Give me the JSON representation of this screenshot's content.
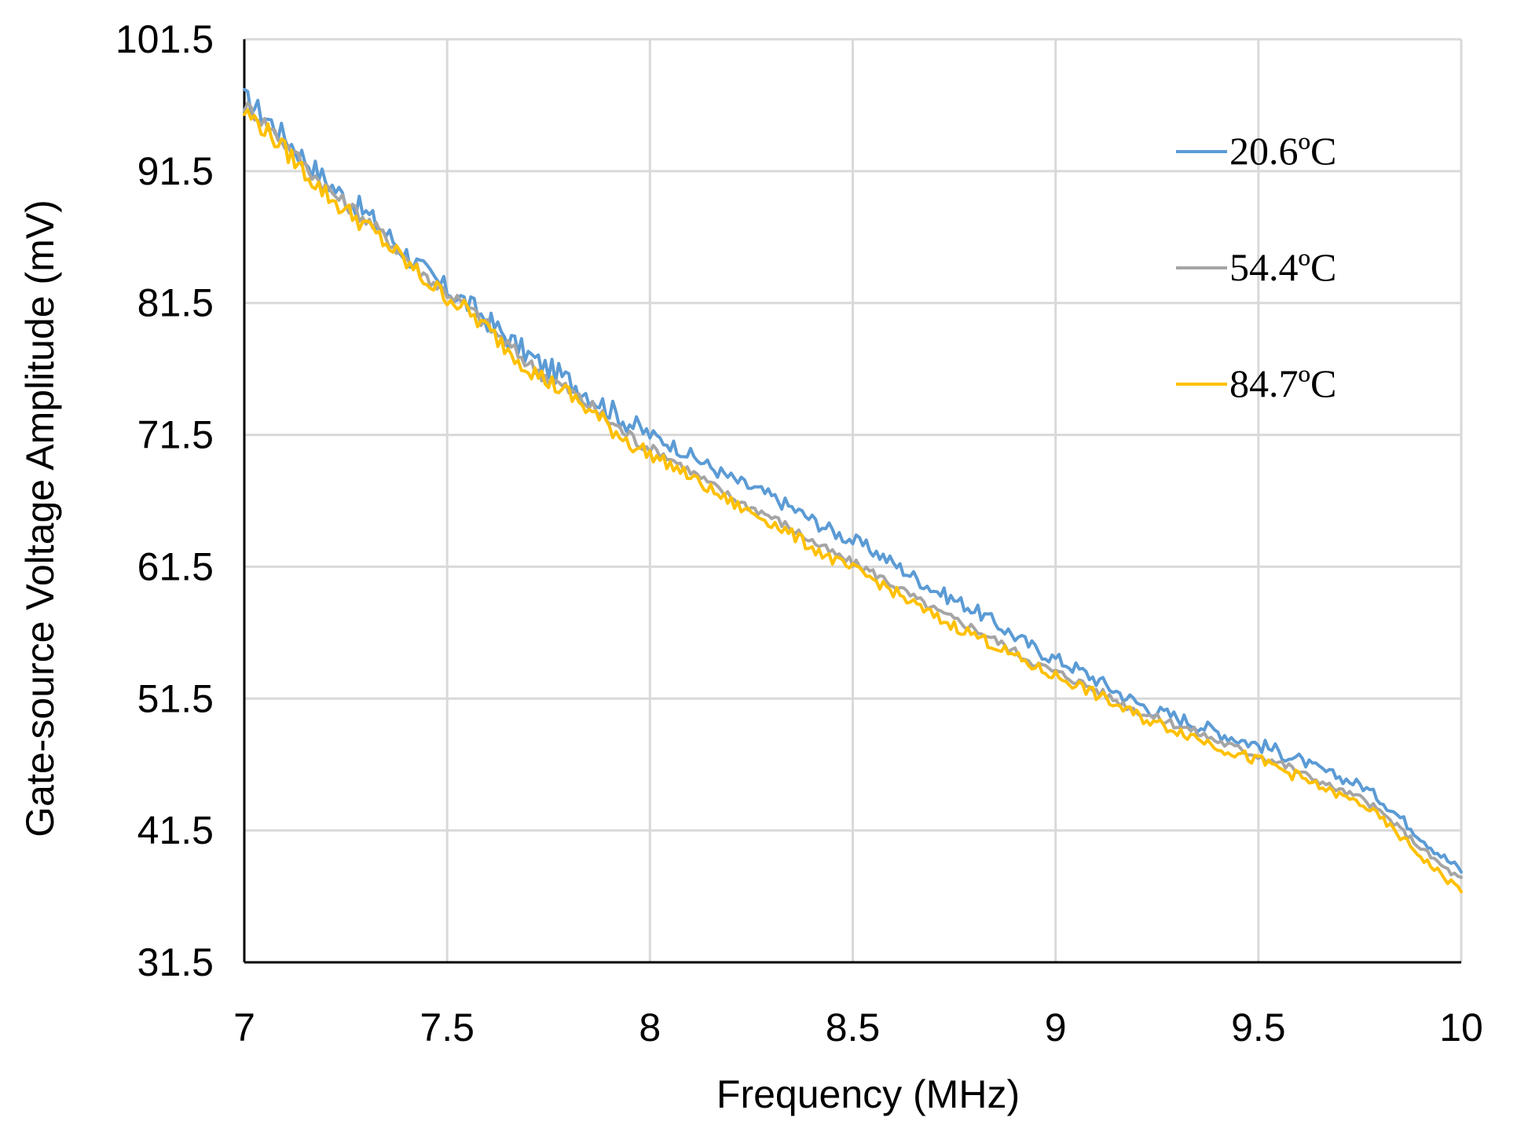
{
  "chart_data": {
    "type": "line",
    "title": "",
    "xlabel": "Frequency (MHz)",
    "ylabel": "Gate-source Voltage Amplitude (mV)",
    "xlim": [
      7,
      10
    ],
    "ylim": [
      31.5,
      101.5
    ],
    "xticks": [
      7,
      7.5,
      8,
      8.5,
      9,
      9.5,
      10
    ],
    "xtick_labels": [
      "7",
      "7.5",
      "8",
      "8.5",
      "9",
      "9.5",
      "10"
    ],
    "yticks": [
      31.5,
      41.5,
      51.5,
      61.5,
      71.5,
      81.5,
      91.5,
      101.5
    ],
    "ytick_labels": [
      "31.5",
      "41.5",
      "51.5",
      "61.5",
      "71.5",
      "81.5",
      "91.5",
      "101.5"
    ],
    "grid": true,
    "legend_position": "top-right",
    "x": [
      7.0,
      7.25,
      7.5,
      7.75,
      8.0,
      8.25,
      8.5,
      8.75,
      9.0,
      9.25,
      9.5,
      9.75,
      10.0
    ],
    "series": [
      {
        "name": "20.6ºC",
        "color": "#5b9bd5",
        "values": [
          97.0,
          89.5,
          82.5,
          76.5,
          71.5,
          67.5,
          63.5,
          59.0,
          54.5,
          50.5,
          48.0,
          45.0,
          38.5
        ]
      },
      {
        "name": "54.4ºC",
        "color": "#a5a5a5",
        "values": [
          96.5,
          89.0,
          82.3,
          75.8,
          70.5,
          66.0,
          61.8,
          57.5,
          53.5,
          50.0,
          47.2,
          44.0,
          37.8
        ]
      },
      {
        "name": "84.7ºC",
        "color": "#ffc000",
        "values": [
          96.0,
          88.5,
          82.0,
          75.5,
          70.0,
          65.6,
          61.3,
          57.0,
          53.2,
          49.6,
          46.8,
          43.6,
          37.0
        ]
      }
    ]
  }
}
